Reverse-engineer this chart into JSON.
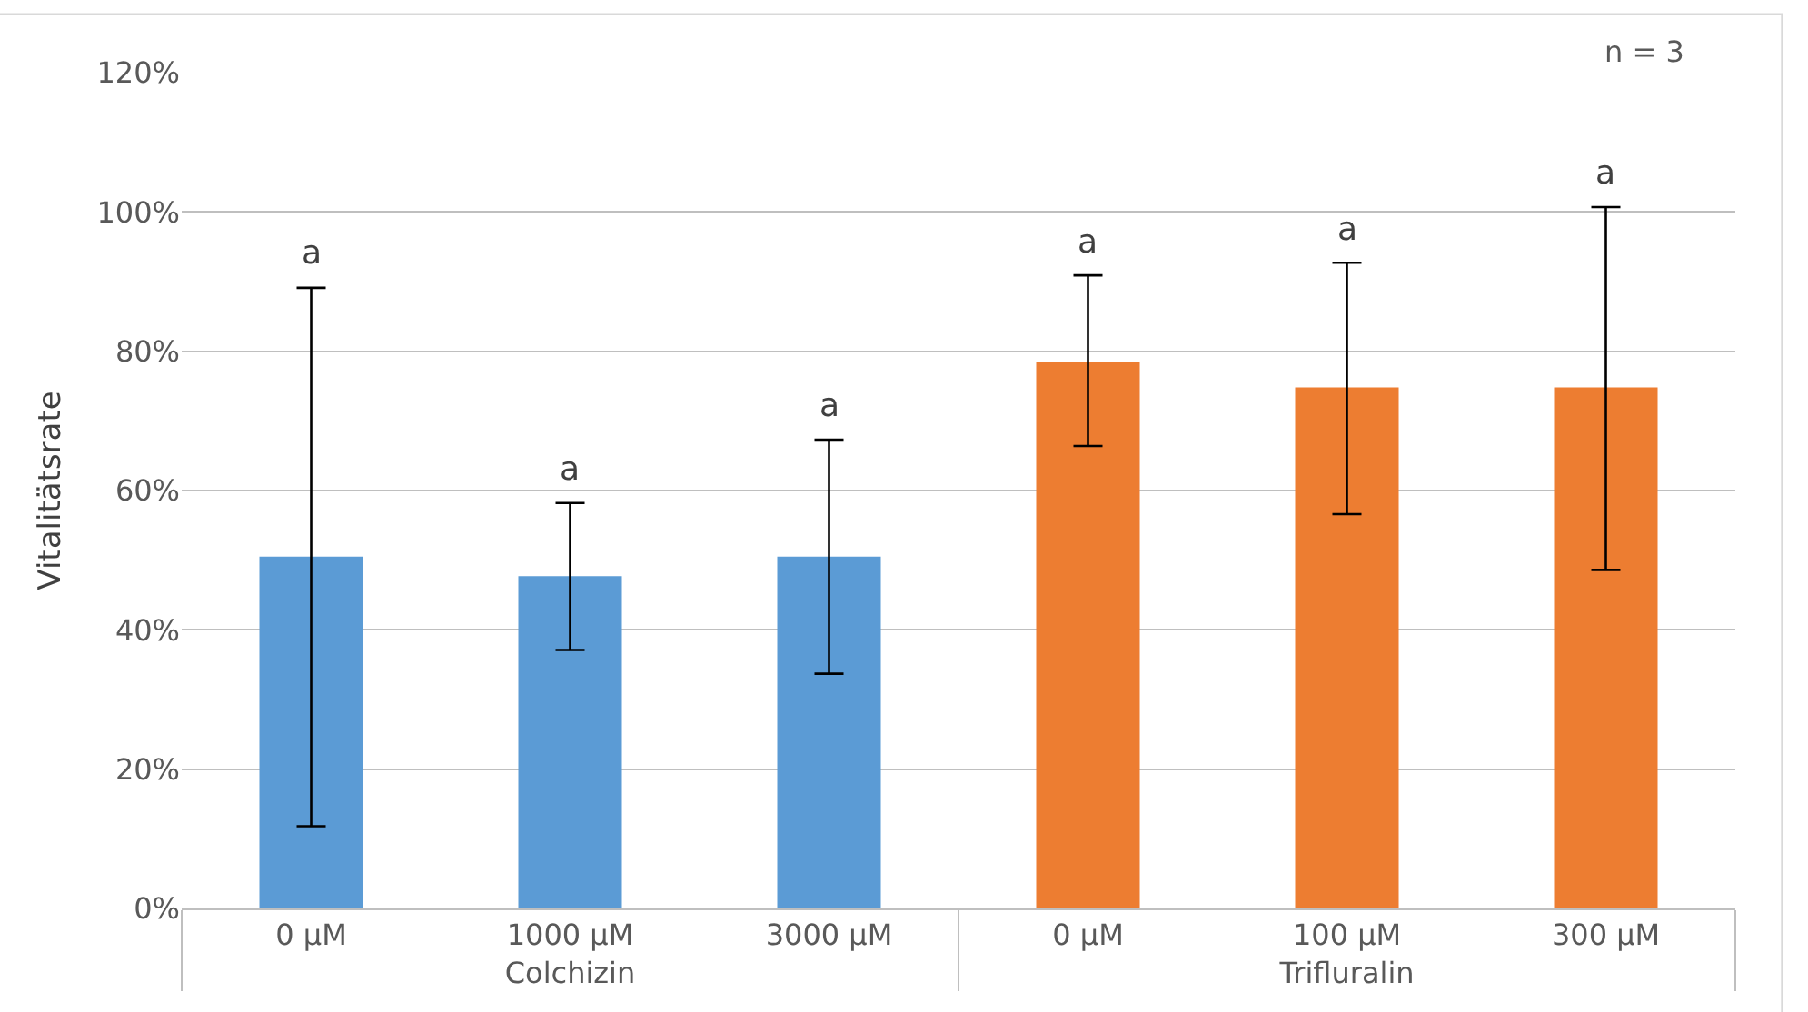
{
  "chart_data": {
    "type": "bar",
    "ylabel": "Vitalitätsrate",
    "categories": [
      "0 µM",
      "1000 µM",
      "3000 µM",
      "0 µM",
      "100 µM",
      "300 µM"
    ],
    "series": [
      {
        "name": "Colchizin",
        "color": "#5b9bd5",
        "values": [
          50.5,
          47.7,
          50.5,
          null,
          null,
          null
        ],
        "errors": [
          [
            11.8,
            89.1
          ],
          [
            37.1,
            58.2
          ],
          [
            33.7,
            67.3
          ],
          null,
          null,
          null
        ]
      },
      {
        "name": "Trifluralin",
        "color": "#ed7d31",
        "values": [
          null,
          null,
          null,
          78.5,
          74.8,
          74.8
        ],
        "errors": [
          null,
          null,
          null,
          [
            66.4,
            90.9
          ],
          [
            56.6,
            92.7
          ],
          [
            48.6,
            100.7
          ]
        ]
      }
    ],
    "ylim": [
      0,
      120
    ],
    "yticks": [
      {
        "value": 0,
        "label": "0%"
      },
      {
        "value": 20,
        "label": "20%"
      },
      {
        "value": 40,
        "label": "40%"
      },
      {
        "value": 60,
        "label": "60%"
      },
      {
        "value": 80,
        "label": "80%"
      },
      {
        "value": 100,
        "label": "100%"
      },
      {
        "value": 120,
        "label": "120%"
      }
    ],
    "grid": "y",
    "legend": false,
    "annotations": [
      "a",
      "a",
      "a",
      "a",
      "a",
      "a",
      "n = 3"
    ]
  }
}
